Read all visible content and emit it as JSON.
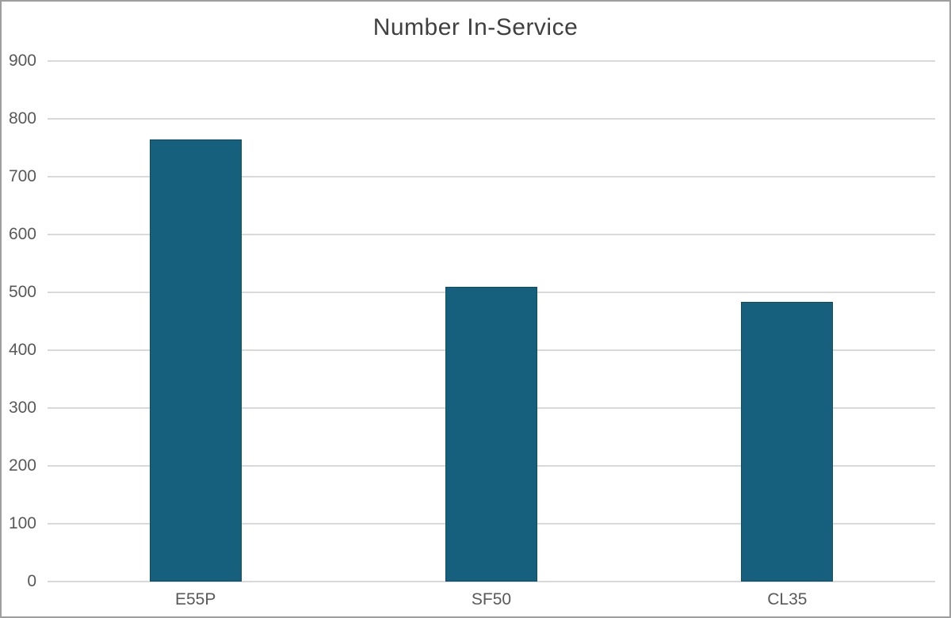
{
  "chart_data": {
    "type": "bar",
    "title": "Number In-Service",
    "categories": [
      "E55P",
      "SF50",
      "CL35"
    ],
    "values": [
      765,
      509,
      483
    ],
    "xlabel": "",
    "ylabel": "",
    "ylim": [
      0,
      900
    ],
    "ytick_step": 100,
    "ytick_labels": [
      "0",
      "100",
      "200",
      "300",
      "400",
      "500",
      "600",
      "700",
      "800",
      "900"
    ],
    "grid": "horizontal",
    "legend": "none",
    "colors": {
      "bar_fill": "#16607E",
      "bar_border": "#0E4C63",
      "gridline": "#D9D9D9",
      "tick_label": "#595959",
      "title": "#404040",
      "background": "#FFFFFF",
      "frame_border": "#9E9E9E"
    }
  }
}
